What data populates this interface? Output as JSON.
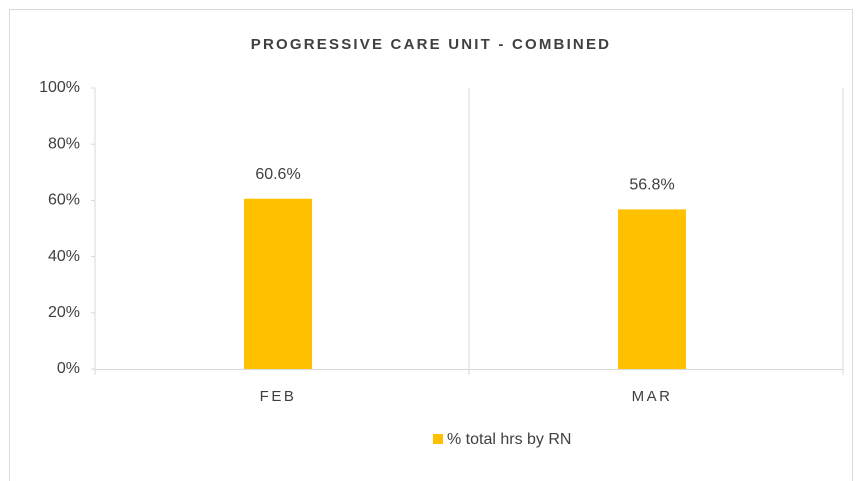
{
  "chart_data": {
    "type": "bar",
    "title": "PROGRESSIVE CARE UNIT - COMBINED",
    "categories": [
      "FEB",
      "MAR"
    ],
    "series": [
      {
        "name": "% total hrs by RN",
        "color": "#ffc000",
        "values": [
          60.6,
          56.8
        ],
        "value_labels": [
          "60.6%",
          "56.8%"
        ]
      }
    ],
    "ylim": [
      0,
      100
    ],
    "yticks": [
      {
        "value": 0,
        "label": "0%"
      },
      {
        "value": 20,
        "label": "20%"
      },
      {
        "value": 40,
        "label": "40%"
      },
      {
        "value": 60,
        "label": "60%"
      },
      {
        "value": 80,
        "label": "80%"
      },
      {
        "value": 100,
        "label": "100%"
      }
    ],
    "legend": "bottom"
  }
}
